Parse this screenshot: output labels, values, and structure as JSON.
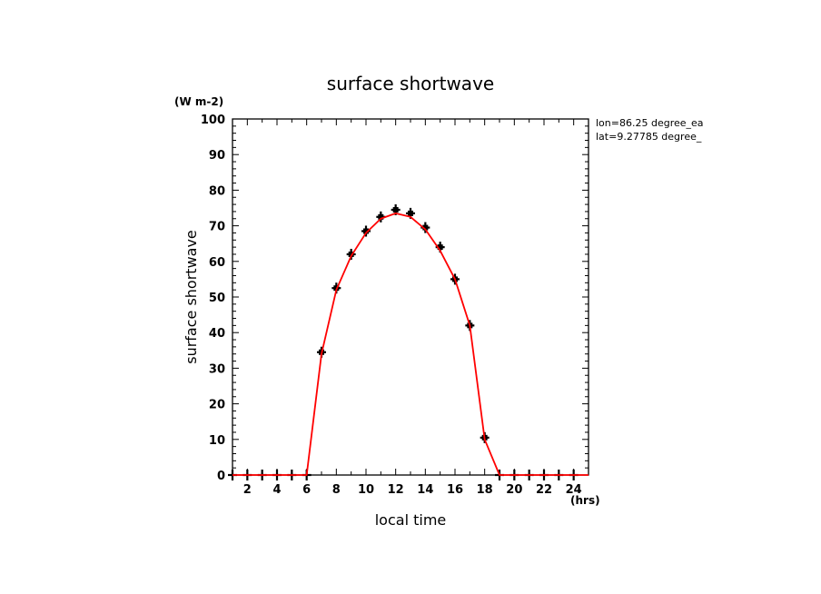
{
  "chart_data": {
    "type": "line",
    "title": "surface shortwave",
    "xlabel": "local time",
    "ylabel": "surface shortwave",
    "x_unit": "(hrs)",
    "y_unit": "(W m-2)",
    "xlim": [
      1,
      25
    ],
    "ylim": [
      0,
      100
    ],
    "x_ticks": [
      2,
      4,
      6,
      8,
      10,
      12,
      14,
      16,
      18,
      20,
      22,
      24
    ],
    "y_ticks": [
      0,
      10,
      20,
      30,
      40,
      50,
      60,
      70,
      80,
      90,
      100
    ],
    "annotations": [
      "lon=86.25 degree_ea",
      "lat=9.27785 degree_"
    ],
    "series": [
      {
        "type": "line",
        "color": "#ff0000",
        "x": [
          1,
          2,
          3,
          4,
          5,
          6,
          7,
          8,
          9,
          10,
          11,
          12,
          13,
          14,
          15,
          16,
          17,
          18,
          19,
          20,
          21,
          22,
          23,
          24,
          25
        ],
        "y": [
          0,
          0,
          0,
          0,
          0,
          0,
          34,
          52,
          61.5,
          68,
          72,
          73.5,
          72.5,
          69,
          63,
          55,
          42,
          10,
          0,
          0,
          0,
          0,
          0,
          0,
          0
        ]
      },
      {
        "type": "scatter",
        "color": "#000000",
        "marker": "cross",
        "x": [
          1,
          2,
          3,
          4,
          5,
          6,
          7,
          8,
          9,
          10,
          11,
          12,
          13,
          14,
          15,
          16,
          17,
          18,
          19,
          20,
          21,
          22,
          23,
          24
        ],
        "y": [
          0,
          0,
          0,
          0,
          0,
          0,
          34.5,
          52.5,
          62,
          68.5,
          72.5,
          74.5,
          73.5,
          69.5,
          64,
          55,
          42,
          10.5,
          0,
          0,
          0,
          0,
          0,
          0
        ]
      }
    ]
  }
}
